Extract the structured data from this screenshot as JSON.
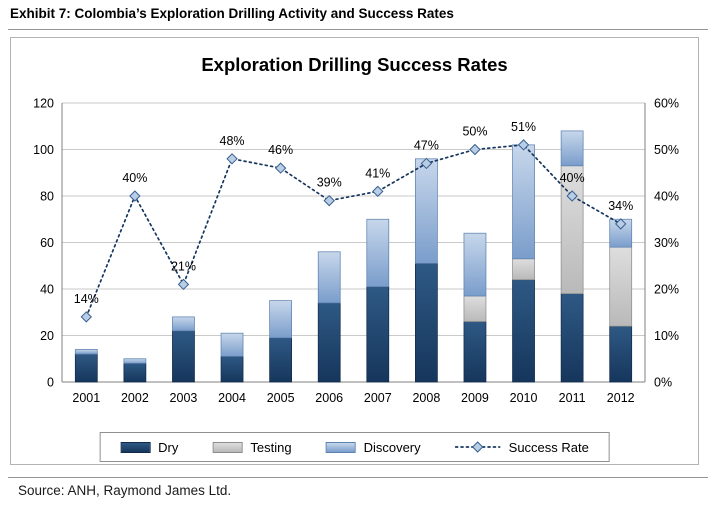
{
  "header": {
    "title": "Exhibit 7: Colombia’s Exploration Drilling Activity and Success Rates"
  },
  "footer": {
    "source": "Source: ANH, Raymond James Ltd."
  },
  "chart_data": {
    "type": "combo-stacked-bar-line",
    "title": "Exploration Drilling Success Rates",
    "categories": [
      "2001",
      "2002",
      "2003",
      "2004",
      "2005",
      "2006",
      "2007",
      "2008",
      "2009",
      "2010",
      "2011",
      "2012"
    ],
    "series": [
      {
        "name": "Dry",
        "type": "bar",
        "values": [
          12,
          8,
          22,
          11,
          19,
          34,
          41,
          51,
          26,
          44,
          38,
          24
        ],
        "color_top": "#2e5984",
        "color_bottom": "#16365c",
        "border": "#122b4c"
      },
      {
        "name": "Testing",
        "type": "bar",
        "values": [
          0,
          0,
          0,
          0,
          0,
          0,
          0,
          0,
          11,
          9,
          55,
          34
        ],
        "color_top": "#dedede",
        "color_bottom": "#b9b9b9",
        "border": "#8c8c8c"
      },
      {
        "name": "Discovery",
        "type": "bar",
        "values": [
          2,
          2,
          6,
          10,
          16,
          22,
          29,
          45,
          27,
          49,
          15,
          12
        ],
        "color_top": "#c7d7eb",
        "color_bottom": "#7a9dcb",
        "border": "#5e82b0"
      },
      {
        "name": "Success Rate",
        "type": "line",
        "axis": "right",
        "unit": "%",
        "values": [
          14,
          40,
          21,
          48,
          46,
          39,
          41,
          47,
          50,
          51,
          40,
          34
        ],
        "line_color": "#17375e",
        "marker_fill": "#b9cde5",
        "marker_stroke": "#376092"
      }
    ],
    "left_axis": {
      "min": 0,
      "max": 120,
      "step": 20,
      "ticks": [
        "0",
        "20",
        "40",
        "60",
        "80",
        "100",
        "120"
      ]
    },
    "right_axis": {
      "min": 0,
      "max": 60,
      "step": 10,
      "ticks": [
        "0%",
        "10%",
        "20%",
        "30%",
        "40%",
        "50%",
        "60%"
      ]
    },
    "grid": "horizontal",
    "legend_position": "bottom"
  }
}
